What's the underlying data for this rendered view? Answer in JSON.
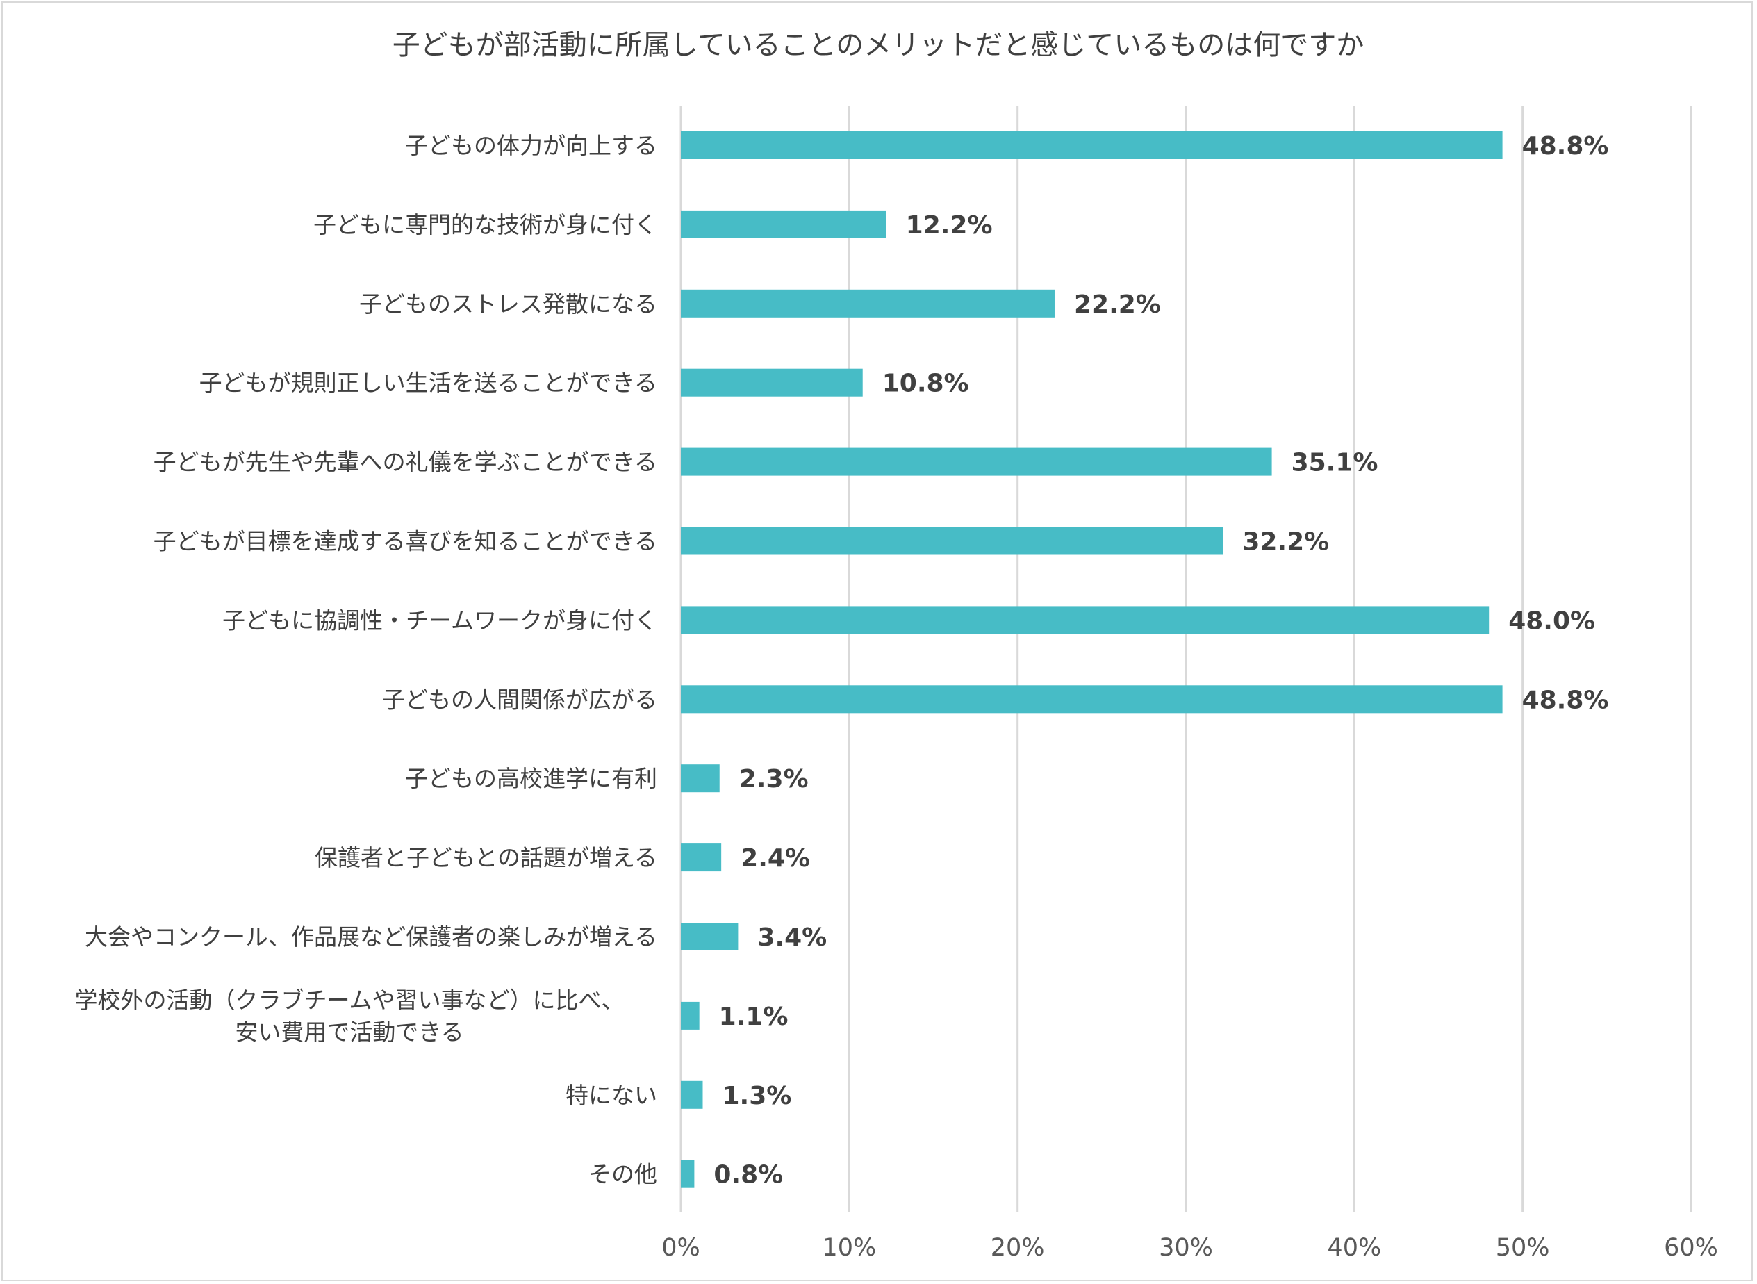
{
  "chart_data": {
    "type": "bar",
    "orientation": "horizontal",
    "title": "子どもが部活動に所属していることのメリットだと感じているものは何ですか",
    "categories": [
      [
        "子どもの体力が向上する"
      ],
      [
        "子どもに専門的な技術が身に付く"
      ],
      [
        "子どものストレス発散になる"
      ],
      [
        "子どもが規則正しい生活を送ることができる"
      ],
      [
        "子どもが先生や先輩への礼儀を学ぶことができる"
      ],
      [
        "子どもが目標を達成する喜びを知ることができる"
      ],
      [
        "子どもに協調性・チームワークが身に付く"
      ],
      [
        "子どもの人間関係が広がる"
      ],
      [
        "子どもの高校進学に有利"
      ],
      [
        "保護者と子どもとの話題が増える"
      ],
      [
        "大会やコンクール、作品展など保護者の楽しみが増える"
      ],
      [
        "学校外の活動（クラブチームや習い事など）に比べ、",
        "安い費用で活動できる"
      ],
      [
        "特にない"
      ],
      [
        "その他"
      ]
    ],
    "values": [
      48.8,
      12.2,
      22.2,
      10.8,
      35.1,
      32.2,
      48.0,
      48.8,
      2.3,
      2.4,
      3.4,
      1.1,
      1.3,
      0.8
    ],
    "data_labels": [
      "48.8%",
      "12.2%",
      "22.2%",
      "10.8%",
      "35.1%",
      "32.2%",
      "48.0%",
      "48.8%",
      "2.3%",
      "2.4%",
      "3.4%",
      "1.1%",
      "1.3%",
      "0.8%"
    ],
    "xlim": [
      0,
      60
    ],
    "x_ticks": [
      0,
      10,
      20,
      30,
      40,
      50,
      60
    ],
    "x_tick_labels": [
      "0%",
      "10%",
      "20%",
      "30%",
      "40%",
      "50%",
      "60%"
    ],
    "xlabel": "",
    "ylabel": "",
    "grid": "vertical",
    "legend": "none",
    "bar_color": "#47BCC6"
  }
}
